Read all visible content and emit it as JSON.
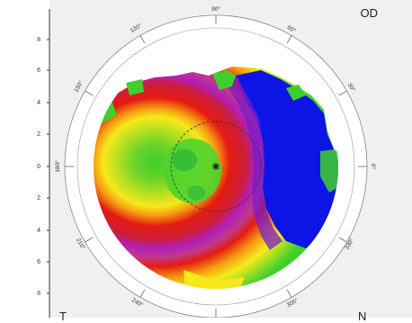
{
  "eye_label": "OD",
  "bottom_left_label": "T",
  "bottom_right_label": "N",
  "axis_ticks": [
    "8",
    "6",
    "4",
    "2",
    "0",
    "2",
    "4",
    "6",
    "8"
  ],
  "angle_labels": [
    "90°",
    "60°",
    "30°",
    "0°",
    "330°",
    "300°",
    "240°",
    "210°",
    "150°",
    "120°",
    "180°"
  ],
  "colors": {
    "background": "#f0f0f0",
    "map_white": "#ffffff",
    "red": "#e41b12",
    "magenta": "#b21fb8",
    "blue": "#0c14e6",
    "yellow": "#f4ec1c",
    "green": "#3fcf2c",
    "orange": "#f69a12"
  }
}
